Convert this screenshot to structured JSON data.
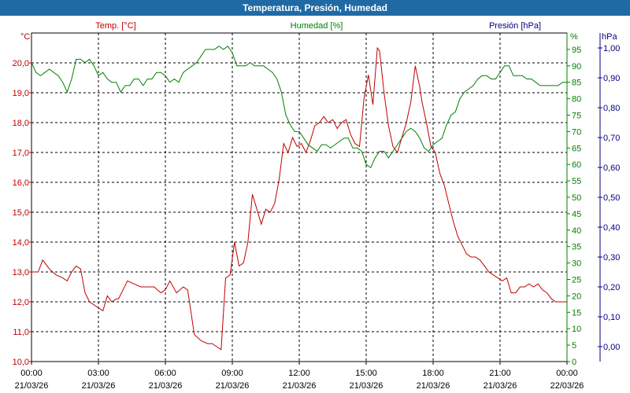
{
  "window": {
    "title": "Temperatura, Presión, Humedad"
  },
  "chart_data": {
    "type": "line",
    "title": "Temperatura, Presión, Humedad",
    "grid": true,
    "colors": {
      "temp": "#c00000",
      "hum": "#008000",
      "pres": "#000080",
      "title_bar": "#1f6aa5"
    },
    "axes": {
      "left": {
        "label": "Temp. [°C]",
        "unit": "°C",
        "range": [
          10.0,
          21.0
        ],
        "ticks": [
          "10,0",
          "11,0",
          "12,0",
          "13,0",
          "14,0",
          "15,0",
          "16,0",
          "17,0",
          "18,0",
          "19,0",
          "20,0"
        ]
      },
      "right1": {
        "label": "Humedad [%]",
        "unit": "%",
        "range": [
          0,
          100
        ],
        "ticks": [
          "0",
          "5",
          "10",
          "15",
          "20",
          "25",
          "30",
          "35",
          "40",
          "45",
          "50",
          "55",
          "60",
          "65",
          "70",
          "75",
          "80",
          "85",
          "90",
          "95"
        ]
      },
      "right2": {
        "label": "Presión [hPa]",
        "unit": "hPa",
        "range": [
          -0.05,
          1.05
        ],
        "ticks": [
          "0,00",
          "0,10",
          "0,20",
          "0,30",
          "0,40",
          "0,50",
          "0,60",
          "0,70",
          "0,80",
          "0,90",
          "1,00"
        ]
      },
      "x": {
        "range_hours": [
          0,
          24
        ],
        "ticks": [
          {
            "time": "00:00",
            "date": "21/03/26"
          },
          {
            "time": "03:00",
            "date": "21/03/26"
          },
          {
            "time": "06:00",
            "date": "21/03/26"
          },
          {
            "time": "09:00",
            "date": "21/03/26"
          },
          {
            "time": "12:00",
            "date": "21/03/26"
          },
          {
            "time": "15:00",
            "date": "21/03/26"
          },
          {
            "time": "18:00",
            "date": "21/03/26"
          },
          {
            "time": "21:00",
            "date": "21/03/26"
          },
          {
            "time": "00:00",
            "date": "22/03/26"
          }
        ]
      }
    },
    "series": [
      {
        "name": "Temp. [°C]",
        "axis": "left",
        "x": [
          0.0,
          0.3,
          0.5,
          0.8,
          1.1,
          1.4,
          1.6,
          1.8,
          2.0,
          2.2,
          2.4,
          2.6,
          2.8,
          3.0,
          3.2,
          3.4,
          3.6,
          3.8,
          3.9,
          4.1,
          4.3,
          4.6,
          4.9,
          5.2,
          5.5,
          5.8,
          6.0,
          6.2,
          6.5,
          6.8,
          7.0,
          7.3,
          7.6,
          7.9,
          8.1,
          8.3,
          8.5,
          8.7,
          8.9,
          9.1,
          9.3,
          9.5,
          9.7,
          9.9,
          10.1,
          10.3,
          10.5,
          10.7,
          10.9,
          11.1,
          11.3,
          11.5,
          11.7,
          11.9,
          12.1,
          12.3,
          12.5,
          12.7,
          12.9,
          13.1,
          13.3,
          13.5,
          13.7,
          13.9,
          14.1,
          14.3,
          14.5,
          14.7,
          14.9,
          15.1,
          15.3,
          15.5,
          15.6,
          15.8,
          16.0,
          16.2,
          16.4,
          16.6,
          16.8,
          17.0,
          17.2,
          17.4,
          17.5,
          17.7,
          17.9,
          18.1,
          18.3,
          18.5,
          18.7,
          18.9,
          19.1,
          19.3,
          19.5,
          19.7,
          19.9,
          20.1,
          20.3,
          20.5,
          20.7,
          20.9,
          21.1,
          21.3,
          21.5,
          21.7,
          21.9,
          22.1,
          22.3,
          22.5,
          22.7,
          22.9,
          23.1,
          23.3,
          23.5,
          23.7,
          24.0
        ],
        "y": [
          13.0,
          13.0,
          13.4,
          13.1,
          12.9,
          12.8,
          12.7,
          13.0,
          13.2,
          13.1,
          12.3,
          12.0,
          11.9,
          11.8,
          11.7,
          12.2,
          12.0,
          12.1,
          12.1,
          12.4,
          12.7,
          12.6,
          12.5,
          12.5,
          12.5,
          12.3,
          12.4,
          12.7,
          12.3,
          12.5,
          12.4,
          10.9,
          10.7,
          10.6,
          10.6,
          10.5,
          10.4,
          12.8,
          12.9,
          14.0,
          13.2,
          13.3,
          14.0,
          15.6,
          15.1,
          14.6,
          15.1,
          15.0,
          15.3,
          16.1,
          17.3,
          17.0,
          17.5,
          17.2,
          17.3,
          17.0,
          17.4,
          17.9,
          18.0,
          18.2,
          18.0,
          18.1,
          17.8,
          18.0,
          18.1,
          17.6,
          17.3,
          17.2,
          18.8,
          19.6,
          18.6,
          20.5,
          20.4,
          19.0,
          17.9,
          17.2,
          17.0,
          17.5,
          18.0,
          18.7,
          19.9,
          19.2,
          18.7,
          18.0,
          17.2,
          17.0,
          16.3,
          15.9,
          15.3,
          14.7,
          14.2,
          13.9,
          13.6,
          13.5,
          13.5,
          13.4,
          13.2,
          13.0,
          12.9,
          12.8,
          12.7,
          12.8,
          12.3,
          12.3,
          12.5,
          12.5,
          12.6,
          12.5,
          12.6,
          12.4,
          12.3,
          12.1,
          12.0,
          12.0,
          12.0
        ]
      },
      {
        "name": "Humedad [%]",
        "axis": "right1",
        "x": [
          0.0,
          0.2,
          0.4,
          0.6,
          0.8,
          1.0,
          1.2,
          1.4,
          1.6,
          1.8,
          2.0,
          2.2,
          2.4,
          2.6,
          2.8,
          3.0,
          3.2,
          3.4,
          3.6,
          3.8,
          4.0,
          4.2,
          4.4,
          4.6,
          4.8,
          5.0,
          5.2,
          5.4,
          5.6,
          5.8,
          6.0,
          6.2,
          6.4,
          6.6,
          6.8,
          7.0,
          7.2,
          7.4,
          7.6,
          7.8,
          8.0,
          8.2,
          8.4,
          8.6,
          8.8,
          9.0,
          9.2,
          9.4,
          9.6,
          9.8,
          10.0,
          10.2,
          10.4,
          10.6,
          10.8,
          11.0,
          11.2,
          11.4,
          11.6,
          11.8,
          12.0,
          12.2,
          12.4,
          12.6,
          12.8,
          13.0,
          13.2,
          13.4,
          13.6,
          13.8,
          14.0,
          14.2,
          14.4,
          14.6,
          14.8,
          15.0,
          15.2,
          15.4,
          15.6,
          15.8,
          16.0,
          16.2,
          16.4,
          16.6,
          16.8,
          17.0,
          17.2,
          17.4,
          17.6,
          17.8,
          18.0,
          18.2,
          18.4,
          18.6,
          18.8,
          19.0,
          19.2,
          19.4,
          19.6,
          19.8,
          20.0,
          20.2,
          20.4,
          20.6,
          20.8,
          21.0,
          21.2,
          21.4,
          21.6,
          21.8,
          22.0,
          22.2,
          22.4,
          22.6,
          22.8,
          23.0,
          23.2,
          23.4,
          23.6,
          23.8,
          24.0
        ],
        "y": [
          91,
          88,
          87,
          88,
          89,
          88,
          87,
          85,
          82,
          86,
          92,
          92,
          91,
          92,
          90,
          87,
          88,
          86,
          85,
          85,
          82,
          84,
          84,
          86,
          86,
          84,
          86,
          86,
          88,
          88,
          87,
          85,
          86,
          85,
          88,
          89,
          90,
          91,
          93,
          95,
          95,
          95,
          96,
          95,
          96,
          94,
          90,
          90,
          90,
          91,
          90,
          90,
          90,
          89,
          88,
          86,
          82,
          75,
          72,
          70,
          70,
          68,
          66,
          65,
          64,
          66,
          66,
          65,
          66,
          67,
          68,
          68,
          65,
          65,
          64,
          60,
          59,
          62,
          64,
          64,
          62,
          64,
          66,
          68,
          70,
          71,
          70,
          68,
          65,
          64,
          66,
          67,
          68,
          72,
          75,
          76,
          80,
          82,
          83,
          84,
          86,
          87,
          87,
          86,
          86,
          88,
          90,
          90,
          87,
          87,
          87,
          86,
          86,
          85,
          84,
          84,
          84,
          84,
          84,
          85,
          85
        ]
      },
      {
        "name": "Presión [hPa]",
        "axis": "right2",
        "x": [],
        "y": []
      }
    ]
  }
}
